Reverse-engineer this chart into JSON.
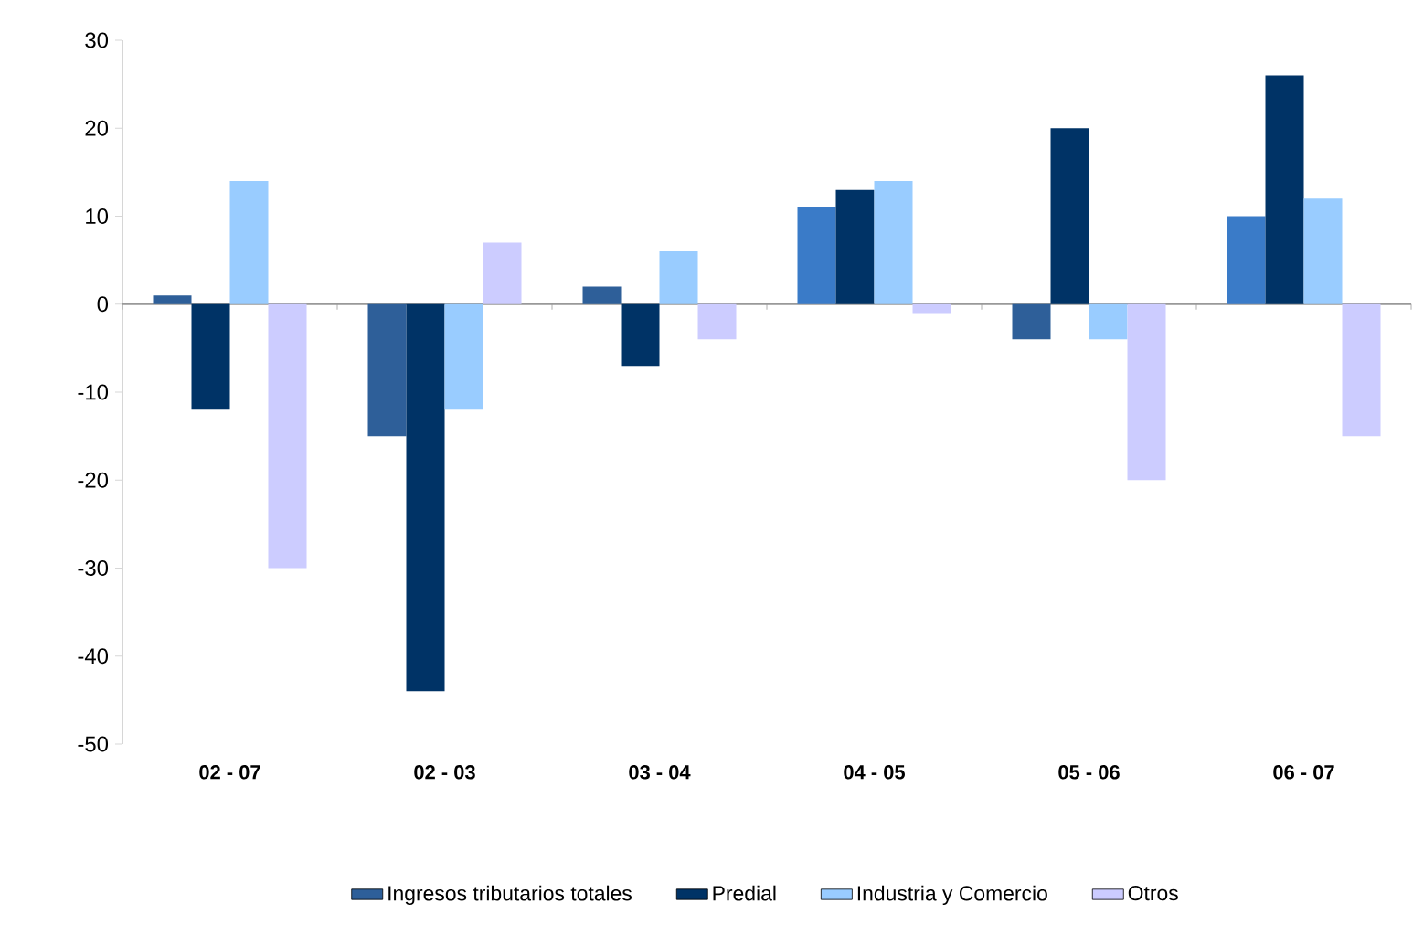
{
  "chart_data": {
    "type": "bar",
    "categories": [
      "02 - 07",
      "02 - 03",
      "03 - 04",
      "04 - 05",
      "05 - 06",
      "06 - 07"
    ],
    "series": [
      {
        "name": "Ingresos tributarios totales",
        "color": "#2e5f99",
        "colors": [
          "#2e5f99",
          "#2e5f99",
          "#2e5f99",
          "#3a7bc8",
          "#2e5f99",
          "#3a7bc8"
        ],
        "values": [
          1,
          -15,
          2,
          11,
          -4,
          10
        ]
      },
      {
        "name": "Predial",
        "color": "#003366",
        "values": [
          -12,
          -44,
          -7,
          13,
          20,
          26
        ]
      },
      {
        "name": "Industria y Comercio",
        "color": "#99ccff",
        "values": [
          14,
          -12,
          6,
          14,
          -4,
          12
        ]
      },
      {
        "name": "Otros",
        "color": "#ccccff",
        "values": [
          -30,
          7,
          -4,
          -1,
          -20,
          -15
        ]
      }
    ],
    "ref_lines": [
      {
        "axis": "y",
        "value": 0,
        "color": "#999999"
      }
    ],
    "ylim": [
      -50,
      30
    ],
    "yticks": [
      -50,
      -40,
      -30,
      -20,
      -10,
      0,
      10,
      20,
      30
    ],
    "grid": false,
    "legend": "bottom"
  }
}
